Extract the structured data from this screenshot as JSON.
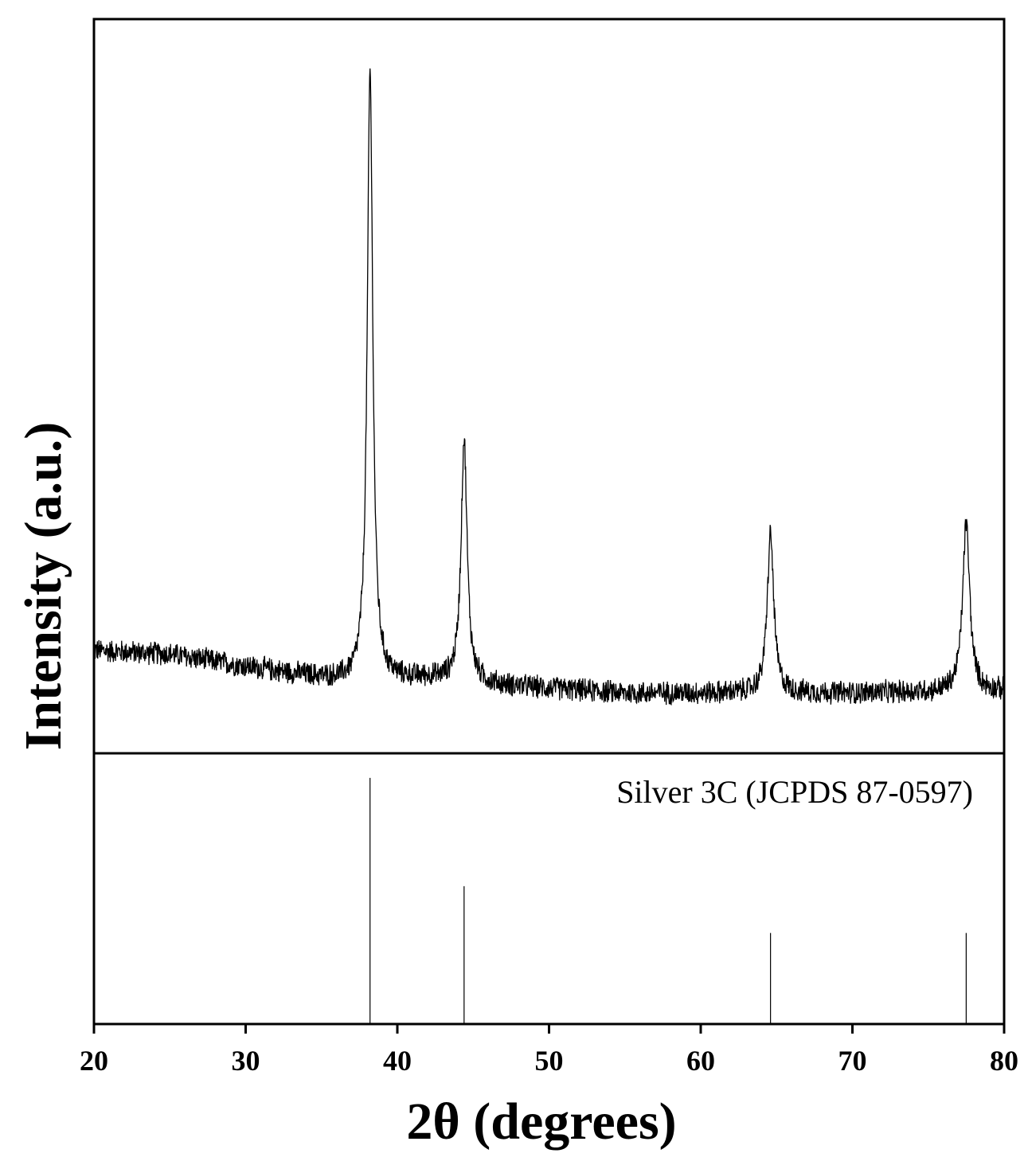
{
  "chart_data": {
    "type": "line",
    "xlabel": "2θ (degrees)",
    "ylabel": "Intensity (a.u.)",
    "xlim": [
      20,
      80
    ],
    "x_ticks": [
      "20",
      "30",
      "40",
      "50",
      "60",
      "70",
      "80"
    ],
    "grid": false,
    "legend": "none",
    "line_color": "#000000",
    "series": [
      {
        "panel": "top",
        "baseline_points": [
          [
            20,
            0.14
          ],
          [
            25,
            0.135
          ],
          [
            30,
            0.118
          ],
          [
            35,
            0.103
          ],
          [
            37,
            0.098
          ],
          [
            42,
            0.102
          ],
          [
            47,
            0.092
          ],
          [
            55,
            0.082
          ],
          [
            63,
            0.082
          ],
          [
            70,
            0.082
          ],
          [
            77,
            0.084
          ],
          [
            80,
            0.085
          ]
        ],
        "noise": 0.018,
        "peaks": [
          {
            "x": 38.2,
            "height": 0.83,
            "width": 0.22
          },
          {
            "x": 44.4,
            "height": 0.33,
            "width": 0.24
          },
          {
            "x": 64.6,
            "height": 0.216,
            "width": 0.26
          },
          {
            "x": 77.5,
            "height": 0.23,
            "width": 0.28
          }
        ],
        "ylim": [
          0,
          1.0
        ]
      },
      {
        "panel": "bottom",
        "name": "Silver 3C (JCPDS 87-0597)",
        "type": "stick",
        "x": [
          38.2,
          44.4,
          64.6,
          77.5
        ],
        "y": [
          100,
          56,
          37,
          37
        ],
        "ylim": [
          0,
          110
        ]
      }
    ]
  }
}
